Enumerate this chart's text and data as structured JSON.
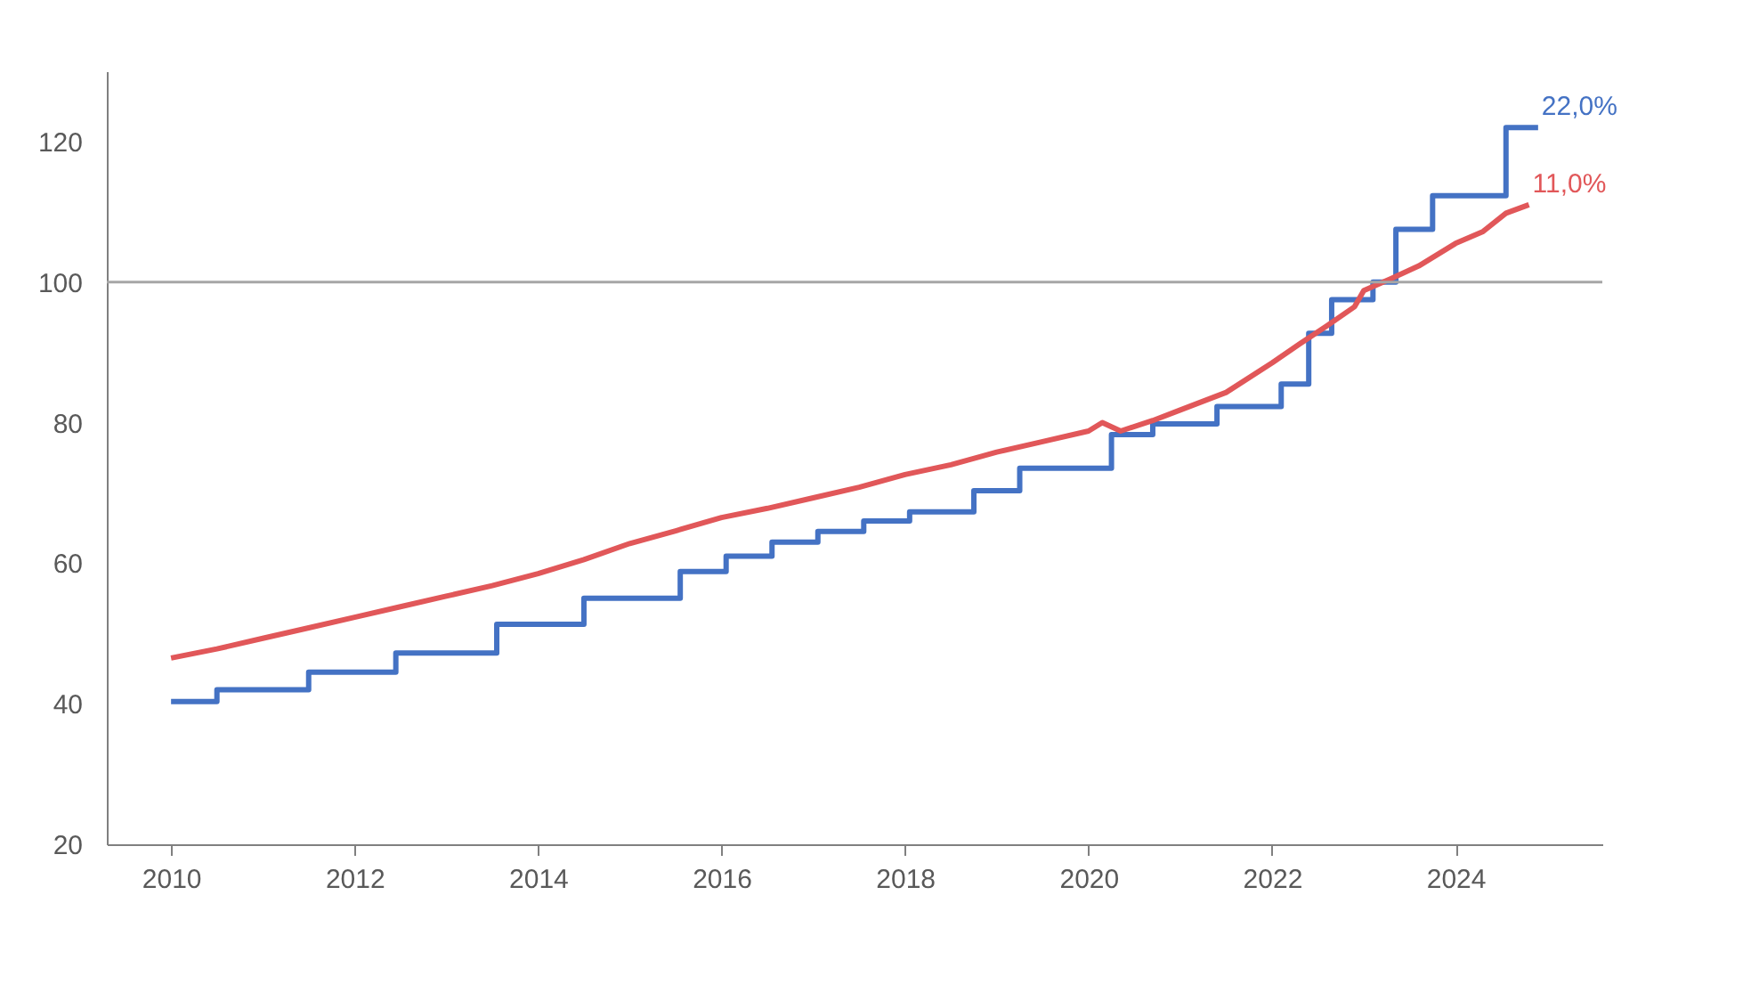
{
  "chart_data": {
    "type": "line",
    "xlim": [
      2009.3,
      2025.6
    ],
    "xticks": [
      2010,
      2012,
      2014,
      2016,
      2018,
      2020,
      2022,
      2024
    ],
    "ylim": [
      20,
      130
    ],
    "yticks": [
      20,
      40,
      60,
      80,
      100,
      120
    ],
    "grid": false,
    "ref_lines": [
      {
        "axis": "y",
        "value": 100,
        "color": "#a6a6a6"
      }
    ],
    "series": [
      {
        "type": "step",
        "color": "#4472c4",
        "x": [
          2010,
          2010.5,
          2011.5,
          2012.45,
          2013.55,
          2014.5,
          2015.55,
          2016.05,
          2016.55,
          2017.05,
          2017.55,
          2018.05,
          2018.75,
          2019.25,
          2020.25,
          2020.7,
          2021.4,
          2022.1,
          2022.4,
          2022.65,
          2023.1,
          2023.35,
          2023.75,
          2024.55,
          2024.9
        ],
        "values": [
          40.3,
          42,
          44.5,
          47.2,
          51.3,
          55,
          58.8,
          61,
          63,
          64.5,
          66,
          67.3,
          70.3,
          73.5,
          78.3,
          79.8,
          82.3,
          85.5,
          92.7,
          97.5,
          100,
          107.5,
          112.3,
          122,
          122
        ]
      },
      {
        "type": "line",
        "color": "#e15759",
        "x": [
          2010,
          2010.5,
          2011,
          2011.5,
          2012,
          2012.5,
          2013,
          2013.5,
          2014,
          2014.5,
          2015,
          2015.5,
          2016,
          2016.5,
          2017,
          2017.5,
          2018,
          2018.5,
          2019,
          2019.5,
          2020,
          2020.15,
          2020.35,
          2020.7,
          2021,
          2021.5,
          2022,
          2022.3,
          2022.6,
          2022.9,
          2023,
          2023.3,
          2023.6,
          2024,
          2024.3,
          2024.55,
          2024.8
        ],
        "values": [
          46.5,
          47.8,
          49.3,
          50.8,
          52.3,
          53.8,
          55.3,
          56.8,
          58.5,
          60.5,
          62.8,
          64.6,
          66.5,
          67.8,
          69.3,
          70.8,
          72.6,
          74.0,
          75.8,
          77.3,
          78.8,
          80,
          78.8,
          80.3,
          81.8,
          84.3,
          88.5,
          91.2,
          93.8,
          96.5,
          98.8,
          100.5,
          102.3,
          105.5,
          107.2,
          109.8,
          111
        ]
      }
    ],
    "annotations": [
      {
        "text": "22,0%",
        "x": 2024.9,
        "y": 122
      },
      {
        "text": "11,0%",
        "x": 2024.8,
        "y": 111
      }
    ]
  }
}
